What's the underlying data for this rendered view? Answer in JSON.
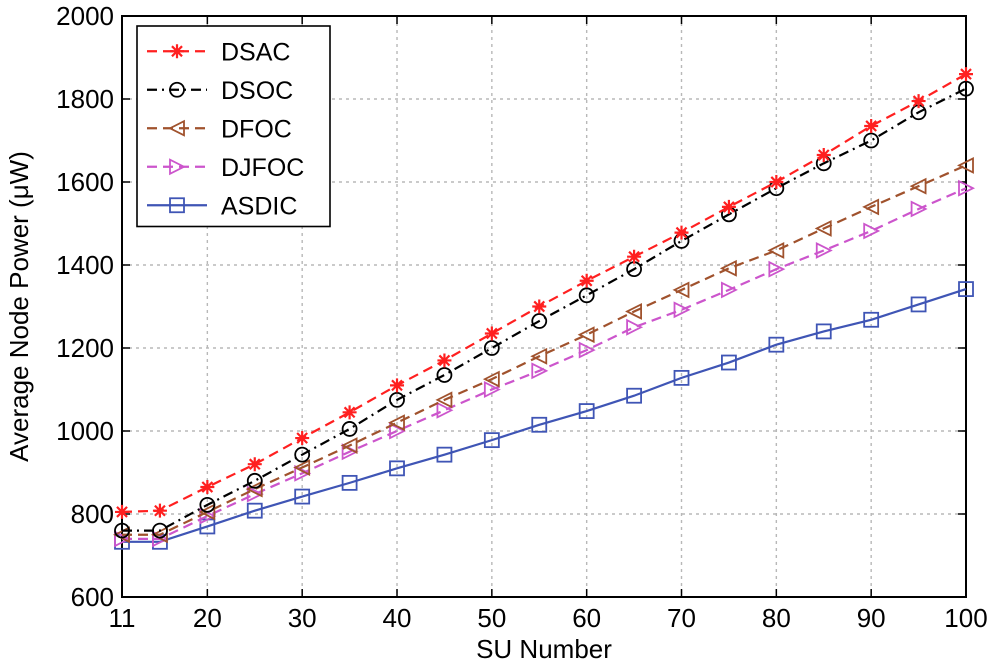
{
  "chart_data": {
    "type": "line",
    "xlabel": "SU Number",
    "ylabel": "Average Node Power (μW)",
    "xlim": [
      11,
      100
    ],
    "ylim": [
      600,
      2000
    ],
    "xticks": [
      11,
      20,
      30,
      40,
      50,
      60,
      70,
      80,
      90,
      100
    ],
    "yticks": [
      600,
      800,
      1000,
      1200,
      1400,
      1600,
      1800,
      2000
    ],
    "grid": true,
    "legend_position": "top-left",
    "x": [
      11,
      15,
      20,
      25,
      30,
      35,
      40,
      45,
      50,
      55,
      60,
      65,
      70,
      75,
      80,
      85,
      90,
      95,
      100
    ],
    "series": [
      {
        "name": "DSAC",
        "color": "#ff2020",
        "line_style": "dashed",
        "marker": "asterisk",
        "values": [
          805,
          808,
          865,
          920,
          983,
          1045,
          1110,
          1170,
          1235,
          1300,
          1362,
          1420,
          1478,
          1540,
          1600,
          1665,
          1735,
          1795,
          1860
        ]
      },
      {
        "name": "DSOC",
        "color": "#000000",
        "line_style": "dashdot",
        "marker": "circle",
        "values": [
          760,
          760,
          822,
          880,
          943,
          1005,
          1075,
          1135,
          1200,
          1265,
          1327,
          1390,
          1458,
          1522,
          1585,
          1645,
          1700,
          1768,
          1825
        ]
      },
      {
        "name": "DFOC",
        "color": "#a0522d",
        "line_style": "dashed",
        "marker": "triangle-left",
        "values": [
          750,
          750,
          805,
          860,
          912,
          965,
          1020,
          1075,
          1125,
          1180,
          1232,
          1288,
          1340,
          1392,
          1435,
          1488,
          1540,
          1590,
          1640
        ]
      },
      {
        "name": "DJFOC",
        "color": "#cc55cc",
        "line_style": "dashed",
        "marker": "triangle-right",
        "values": [
          740,
          740,
          795,
          848,
          898,
          950,
          1000,
          1050,
          1100,
          1145,
          1195,
          1250,
          1292,
          1340,
          1390,
          1435,
          1482,
          1535,
          1585
        ]
      },
      {
        "name": "ASDIC",
        "color": "#3f55b5",
        "line_style": "solid",
        "marker": "square",
        "values": [
          733,
          733,
          770,
          808,
          842,
          875,
          910,
          943,
          978,
          1015,
          1048,
          1085,
          1128,
          1165,
          1208,
          1240,
          1268,
          1305,
          1342
        ]
      }
    ]
  }
}
